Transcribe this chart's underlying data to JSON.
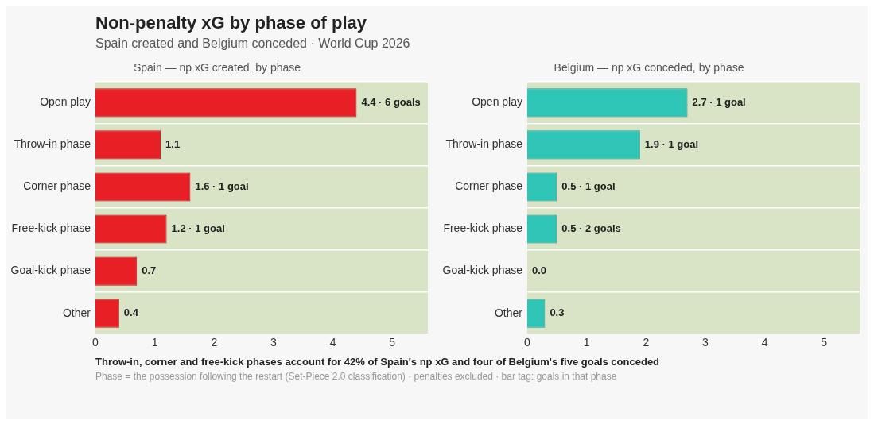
{
  "chart_data": [
    {
      "type": "other",
      "title": "Non-penalty xG by phase of play",
      "subtitle": "Spain created and Belgium conceded · World Cup 2026"
    },
    {
      "type": "bar",
      "orientation": "horizontal",
      "title": "Spain — np xG created, by phase",
      "categories": [
        "Open play",
        "Throw-in phase",
        "Corner phase",
        "Free-kick phase",
        "Goal-kick phase",
        "Other"
      ],
      "values": [
        4.4,
        1.1,
        1.6,
        1.2,
        0.7,
        0.4
      ],
      "color": "#e82026",
      "value_labels": [
        "4.4 · 6 goals",
        "1.1",
        "1.6 · 1 goal",
        "1.2 · 1 goal",
        "0.7",
        "0.4"
      ],
      "xlim": [
        0,
        5.6
      ],
      "xticks": [
        0,
        1,
        2,
        3,
        4,
        5
      ],
      "grid": "y"
    },
    {
      "type": "bar",
      "orientation": "horizontal",
      "title": "Belgium — np xG conceded, by phase",
      "categories": [
        "Open play",
        "Throw-in phase",
        "Corner phase",
        "Free-kick phase",
        "Goal-kick phase",
        "Other"
      ],
      "values": [
        2.7,
        1.9,
        0.5,
        0.5,
        0.0,
        0.3
      ],
      "color": "#2ec4b6",
      "value_labels": [
        "2.7 · 1 goal",
        "1.9 · 1 goal",
        "0.5 · 1 goal",
        "0.5 · 2 goals",
        "0.0",
        "0.3"
      ],
      "xlim": [
        0,
        5.6
      ],
      "xticks": [
        0,
        1,
        2,
        3,
        4,
        5
      ],
      "grid": "y"
    },
    {
      "type": "other",
      "annotations": [
        "Throw-in, corner and free-kick phases account for 42% of Spain's np xG and four of Belgium's five goals conceded",
        "Phase = the possession following the restart (Set-Piece 2.0 classification)  ·  penalties excluded  ·  bar tag: goals in that phase"
      ]
    }
  ]
}
